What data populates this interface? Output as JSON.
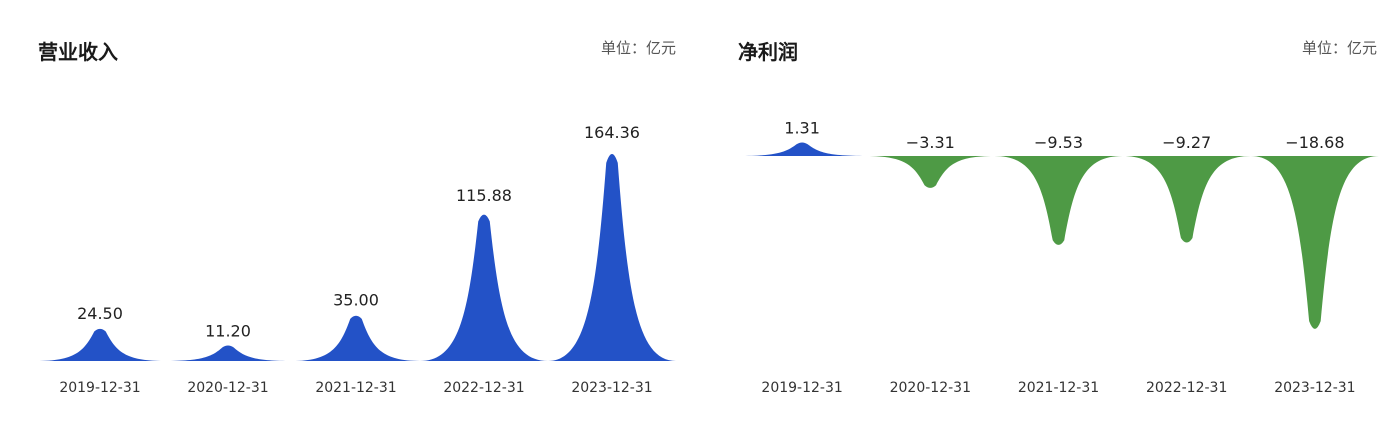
{
  "colors": {
    "positive": "#2352c7",
    "negative": "#4e9a45"
  },
  "chart_data": [
    {
      "type": "area",
      "title": "营业收入",
      "unit_label": "单位：亿元",
      "categories": [
        "2019-12-31",
        "2020-12-31",
        "2021-12-31",
        "2022-12-31",
        "2023-12-31"
      ],
      "values": [
        24.5,
        11.2,
        35.0,
        115.88,
        164.36
      ],
      "value_labels": [
        "24.50",
        "11.20",
        "35.00",
        "115.88",
        "164.36"
      ],
      "ylim": [
        0,
        164.36
      ],
      "grid": false,
      "legend": "none"
    },
    {
      "type": "area",
      "title": "净利润",
      "unit_label": "单位：亿元",
      "categories": [
        "2019-12-31",
        "2020-12-31",
        "2021-12-31",
        "2022-12-31",
        "2023-12-31"
      ],
      "values": [
        1.31,
        -3.31,
        -9.53,
        -9.27,
        -18.68
      ],
      "value_labels": [
        "1.31",
        "−3.31",
        "−9.53",
        "−9.27",
        "−18.68"
      ],
      "ylim": [
        -18.68,
        1.31
      ],
      "grid": false,
      "legend": "none"
    }
  ]
}
